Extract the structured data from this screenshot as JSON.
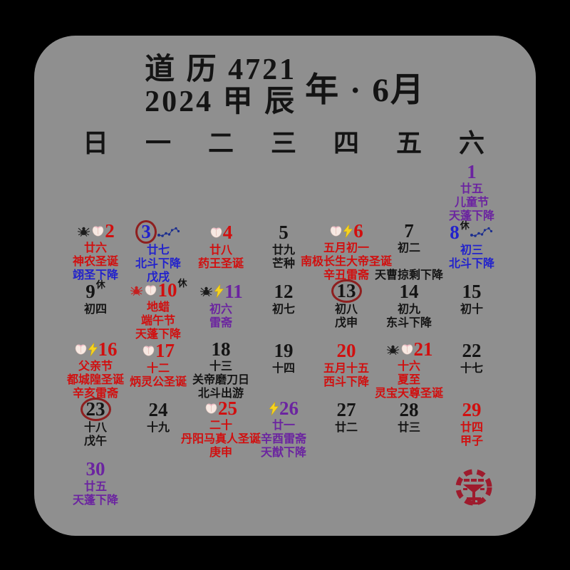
{
  "title": {
    "line1": "道 历 4721",
    "line2": "2024 甲 辰",
    "right": "年 · 6月"
  },
  "weekdays": [
    "日",
    "一",
    "二",
    "三",
    "四",
    "五",
    "六"
  ],
  "colors": {
    "red": "#d10f0f",
    "blue": "#2222cc",
    "purple": "#6b24a0",
    "black": "#141414",
    "ring": "#8e1f1f",
    "seal": "#9e1b2d",
    "background": "#8f8f8f",
    "frame": "#000000",
    "lightning": "#f6d321",
    "dipper": "#1d2f8f",
    "spider_red": "#c42020",
    "peach": "#f7e9e3"
  },
  "icon_names": {
    "peach": "peach-icon",
    "spider-black": "black-spider-icon",
    "spider-red": "red-spider-icon",
    "lightning": "lightning-icon",
    "dipper": "big-dipper-icon"
  },
  "rest_mark": "休",
  "seal_name": "red-taoist-seal",
  "days": [
    {
      "date": "1",
      "row": 0,
      "col": 6,
      "color": "purple",
      "circled": false,
      "rest": false,
      "icons_before": [],
      "icons_after": [],
      "lines": [
        [
          "廿五",
          "purple"
        ],
        [
          "儿童节",
          "purple"
        ],
        [
          "天蓬下降",
          "purple"
        ]
      ]
    },
    {
      "date": "2",
      "row": 1,
      "col": 0,
      "color": "red",
      "circled": false,
      "rest": false,
      "icons_before": [
        "spider-black",
        "peach"
      ],
      "icons_after": [],
      "lines": [
        [
          "廿六",
          "red"
        ],
        [
          "神农圣诞",
          "red"
        ],
        [
          "翊圣下降",
          "blue"
        ]
      ]
    },
    {
      "date": "3",
      "row": 1,
      "col": 1,
      "color": "blue",
      "circled": true,
      "rest": false,
      "icons_before": [],
      "icons_after": [
        "dipper"
      ],
      "lines": [
        [
          "廿七",
          "blue"
        ],
        [
          "北斗下降",
          "blue"
        ],
        [
          "戊戌",
          "blue"
        ]
      ]
    },
    {
      "date": "4",
      "row": 1,
      "col": 2,
      "color": "red",
      "circled": false,
      "rest": false,
      "icons_before": [
        "peach"
      ],
      "icons_after": [],
      "lines": [
        [
          "廿八",
          "red"
        ],
        [
          "药王圣诞",
          "red"
        ]
      ]
    },
    {
      "date": "5",
      "row": 1,
      "col": 3,
      "color": "black",
      "circled": false,
      "rest": false,
      "icons_before": [],
      "icons_after": [],
      "lines": [
        [
          "廿九",
          "black"
        ],
        [
          "芒种",
          "black"
        ]
      ]
    },
    {
      "date": "6",
      "row": 1,
      "col": 4,
      "color": "red",
      "circled": false,
      "rest": false,
      "icons_before": [
        "peach",
        "lightning"
      ],
      "icons_after": [],
      "lines": [
        [
          "五月初一",
          "red"
        ],
        [
          "南极长生大帝圣诞",
          "red"
        ],
        [
          "辛丑雷斋",
          "red"
        ]
      ]
    },
    {
      "date": "7",
      "row": 1,
      "col": 5,
      "color": "black",
      "circled": false,
      "rest": false,
      "icons_before": [],
      "icons_after": [],
      "lines": [
        [
          "初二",
          "black"
        ],
        [
          "",
          "black"
        ],
        [
          "天曹掠剩下降",
          "black"
        ]
      ]
    },
    {
      "date": "8",
      "row": 1,
      "col": 6,
      "color": "blue",
      "circled": false,
      "rest": true,
      "icons_before": [],
      "icons_after": [
        "dipper"
      ],
      "lines": [
        [
          "初三",
          "blue"
        ],
        [
          "北斗下降",
          "blue"
        ]
      ]
    },
    {
      "date": "9",
      "row": 2,
      "col": 0,
      "color": "black",
      "circled": false,
      "rest": true,
      "icons_before": [],
      "icons_after": [],
      "lines": [
        [
          "初四",
          "black"
        ]
      ]
    },
    {
      "date": "10",
      "row": 2,
      "col": 1,
      "color": "red",
      "circled": false,
      "rest": true,
      "icons_before": [
        "spider-red",
        "peach"
      ],
      "icons_after": [],
      "lines": [
        [
          "地蜡",
          "red"
        ],
        [
          "端午节",
          "red"
        ],
        [
          "天蓬下降",
          "red"
        ]
      ]
    },
    {
      "date": "11",
      "row": 2,
      "col": 2,
      "color": "purple",
      "circled": false,
      "rest": false,
      "icons_before": [
        "spider-black",
        "lightning"
      ],
      "icons_after": [],
      "lines": [
        [
          "初六",
          "purple"
        ],
        [
          "雷斋",
          "purple"
        ]
      ]
    },
    {
      "date": "12",
      "row": 2,
      "col": 3,
      "color": "black",
      "circled": false,
      "rest": false,
      "icons_before": [],
      "icons_after": [],
      "lines": [
        [
          "初七",
          "black"
        ]
      ]
    },
    {
      "date": "13",
      "row": 2,
      "col": 4,
      "color": "black",
      "circled": true,
      "rest": false,
      "icons_before": [],
      "icons_after": [],
      "lines": [
        [
          "初八",
          "black"
        ],
        [
          "戊申",
          "black"
        ]
      ]
    },
    {
      "date": "14",
      "row": 2,
      "col": 5,
      "color": "black",
      "circled": false,
      "rest": false,
      "icons_before": [],
      "icons_after": [],
      "lines": [
        [
          "初九",
          "black"
        ],
        [
          "东斗下降",
          "black"
        ]
      ]
    },
    {
      "date": "15",
      "row": 2,
      "col": 6,
      "color": "black",
      "circled": false,
      "rest": false,
      "icons_before": [],
      "icons_after": [],
      "lines": [
        [
          "初十",
          "black"
        ]
      ]
    },
    {
      "date": "16",
      "row": 3,
      "col": 0,
      "color": "red",
      "circled": false,
      "rest": false,
      "icons_before": [
        "peach",
        "lightning"
      ],
      "icons_after": [],
      "lines": [
        [
          "父亲节",
          "red"
        ],
        [
          "都城隍圣诞",
          "red"
        ],
        [
          "辛亥雷斋",
          "red"
        ]
      ]
    },
    {
      "date": "17",
      "row": 3,
      "col": 1,
      "color": "red",
      "circled": false,
      "rest": false,
      "icons_before": [
        "peach"
      ],
      "icons_after": [],
      "lines": [
        [
          "十二",
          "red"
        ],
        [
          "炳灵公圣诞",
          "red"
        ]
      ]
    },
    {
      "date": "18",
      "row": 3,
      "col": 2,
      "color": "black",
      "circled": false,
      "rest": false,
      "icons_before": [],
      "icons_after": [],
      "lines": [
        [
          "十三",
          "black"
        ],
        [
          "关帝磨刀日",
          "black"
        ],
        [
          "北斗出游",
          "black"
        ]
      ]
    },
    {
      "date": "19",
      "row": 3,
      "col": 3,
      "color": "black",
      "circled": false,
      "rest": false,
      "icons_before": [],
      "icons_after": [],
      "lines": [
        [
          "十四",
          "black"
        ]
      ]
    },
    {
      "date": "20",
      "row": 3,
      "col": 4,
      "color": "red",
      "circled": false,
      "rest": false,
      "icons_before": [],
      "icons_after": [],
      "lines": [
        [
          "五月十五",
          "red"
        ],
        [
          "西斗下降",
          "red"
        ]
      ]
    },
    {
      "date": "21",
      "row": 3,
      "col": 5,
      "color": "red",
      "circled": false,
      "rest": false,
      "icons_before": [
        "spider-black",
        "peach"
      ],
      "icons_after": [],
      "lines": [
        [
          "十六",
          "red"
        ],
        [
          "夏至",
          "red"
        ],
        [
          "灵宝天尊圣诞",
          "red"
        ]
      ]
    },
    {
      "date": "22",
      "row": 3,
      "col": 6,
      "color": "black",
      "circled": false,
      "rest": false,
      "icons_before": [],
      "icons_after": [],
      "lines": [
        [
          "十七",
          "black"
        ]
      ]
    },
    {
      "date": "23",
      "row": 4,
      "col": 0,
      "color": "black",
      "circled": true,
      "rest": false,
      "icons_before": [],
      "icons_after": [],
      "lines": [
        [
          "十八",
          "black"
        ],
        [
          "戊午",
          "black"
        ]
      ]
    },
    {
      "date": "24",
      "row": 4,
      "col": 1,
      "color": "black",
      "circled": false,
      "rest": false,
      "icons_before": [],
      "icons_after": [],
      "lines": [
        [
          "十九",
          "black"
        ]
      ]
    },
    {
      "date": "25",
      "row": 4,
      "col": 2,
      "color": "red",
      "circled": false,
      "rest": false,
      "icons_before": [
        "peach"
      ],
      "icons_after": [],
      "lines": [
        [
          "二十",
          "red"
        ],
        [
          "丹阳马真人圣诞",
          "red"
        ],
        [
          "庚申",
          "red"
        ]
      ]
    },
    {
      "date": "26",
      "row": 4,
      "col": 3,
      "color": "purple",
      "circled": false,
      "rest": false,
      "icons_before": [
        "lightning"
      ],
      "icons_after": [],
      "lines": [
        [
          "廿一",
          "purple"
        ],
        [
          "辛酉雷斋",
          "purple"
        ],
        [
          "天猷下降",
          "purple"
        ]
      ]
    },
    {
      "date": "27",
      "row": 4,
      "col": 4,
      "color": "black",
      "circled": false,
      "rest": false,
      "icons_before": [],
      "icons_after": [],
      "lines": [
        [
          "廿二",
          "black"
        ]
      ]
    },
    {
      "date": "28",
      "row": 4,
      "col": 5,
      "color": "black",
      "circled": false,
      "rest": false,
      "icons_before": [],
      "icons_after": [],
      "lines": [
        [
          "廿三",
          "black"
        ]
      ]
    },
    {
      "date": "29",
      "row": 4,
      "col": 6,
      "color": "red",
      "circled": false,
      "rest": false,
      "icons_before": [],
      "icons_after": [],
      "lines": [
        [
          "廿四",
          "red"
        ],
        [
          "甲子",
          "red"
        ]
      ]
    },
    {
      "date": "30",
      "row": 5,
      "col": 0,
      "color": "purple",
      "circled": false,
      "rest": false,
      "icons_before": [],
      "icons_after": [],
      "lines": [
        [
          "廿五",
          "purple"
        ],
        [
          "天蓬下降",
          "purple"
        ]
      ]
    }
  ]
}
